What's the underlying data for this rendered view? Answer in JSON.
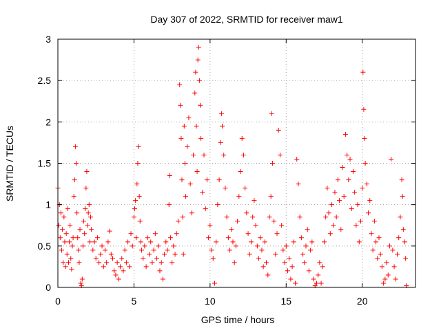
{
  "chart_data": {
    "type": "scatter",
    "title": "Day 307 of 2022, SRMTID for receiver maw1",
    "xlabel": "GPS time / hours",
    "ylabel": "SRMTID / TECUs",
    "xlim": [
      0,
      23.5
    ],
    "ylim": [
      0,
      3
    ],
    "xticks": [
      0,
      5,
      10,
      15,
      20
    ],
    "yticks": [
      0,
      0.5,
      1,
      1.5,
      2,
      2.5,
      3
    ],
    "ytick_labels": [
      "0",
      "0.5",
      "1",
      "1.5",
      "2",
      "2.5",
      "3"
    ],
    "grid": true,
    "marker": "+",
    "color": "#ff0000",
    "series": [
      {
        "name": "SRMTID",
        "points": [
          [
            0.0,
            1.2
          ],
          [
            0.05,
            0.75
          ],
          [
            0.1,
            1.0
          ],
          [
            0.15,
            0.6
          ],
          [
            0.2,
            0.9
          ],
          [
            0.25,
            0.45
          ],
          [
            0.3,
            0.7
          ],
          [
            0.35,
            0.3
          ],
          [
            0.4,
            0.85
          ],
          [
            0.45,
            0.55
          ],
          [
            0.5,
            0.25
          ],
          [
            0.55,
            0.65
          ],
          [
            0.6,
            0.4
          ],
          [
            0.65,
            0.95
          ],
          [
            0.7,
            0.3
          ],
          [
            0.75,
            0.55
          ],
          [
            0.8,
            0.75
          ],
          [
            0.85,
            0.35
          ],
          [
            0.9,
            0.22
          ],
          [
            0.95,
            0.5
          ],
          [
            1.0,
            0.6
          ],
          [
            1.05,
            1.1
          ],
          [
            1.1,
            1.3
          ],
          [
            1.15,
            1.7
          ],
          [
            1.2,
            1.5
          ],
          [
            1.25,
            0.9
          ],
          [
            1.3,
            0.6
          ],
          [
            1.35,
            0.45
          ],
          [
            1.4,
            0.3
          ],
          [
            1.45,
            0.7
          ],
          [
            1.5,
            0.05
          ],
          [
            1.55,
            0.02
          ],
          [
            1.6,
            0.1
          ],
          [
            1.65,
            0.5
          ],
          [
            1.7,
            0.8
          ],
          [
            1.75,
            0.65
          ],
          [
            1.8,
            0.95
          ],
          [
            1.85,
            1.2
          ],
          [
            1.9,
            1.4
          ],
          [
            1.95,
            0.75
          ],
          [
            2.0,
            0.9
          ],
          [
            2.05,
            1.0
          ],
          [
            2.1,
            0.55
          ],
          [
            2.15,
            0.85
          ],
          [
            2.2,
            0.7
          ],
          [
            2.3,
            0.45
          ],
          [
            2.4,
            0.55
          ],
          [
            2.5,
            0.35
          ],
          [
            2.6,
            0.6
          ],
          [
            2.7,
            0.3
          ],
          [
            2.8,
            0.4
          ],
          [
            2.9,
            0.5
          ],
          [
            3.0,
            0.25
          ],
          [
            3.1,
            0.45
          ],
          [
            3.2,
            0.3
          ],
          [
            3.3,
            0.55
          ],
          [
            3.4,
            0.68
          ],
          [
            3.5,
            0.4
          ],
          [
            3.6,
            0.35
          ],
          [
            3.7,
            0.2
          ],
          [
            3.8,
            0.15
          ],
          [
            3.9,
            0.3
          ],
          [
            4.0,
            0.1
          ],
          [
            4.1,
            0.25
          ],
          [
            4.2,
            0.35
          ],
          [
            4.3,
            0.2
          ],
          [
            4.4,
            0.45
          ],
          [
            4.5,
            0.3
          ],
          [
            4.6,
            0.55
          ],
          [
            4.7,
            0.25
          ],
          [
            4.8,
            0.65
          ],
          [
            4.9,
            0.5
          ],
          [
            5.0,
            0.85
          ],
          [
            5.05,
            0.95
          ],
          [
            5.1,
            1.05
          ],
          [
            5.15,
            0.6
          ],
          [
            5.2,
            1.25
          ],
          [
            5.25,
            1.5
          ],
          [
            5.3,
            1.7
          ],
          [
            5.35,
            1.1
          ],
          [
            5.4,
            0.8
          ],
          [
            5.45,
            0.55
          ],
          [
            5.5,
            0.45
          ],
          [
            5.6,
            0.35
          ],
          [
            5.7,
            0.5
          ],
          [
            5.8,
            0.25
          ],
          [
            5.9,
            0.6
          ],
          [
            6.0,
            0.4
          ],
          [
            6.1,
            0.55
          ],
          [
            6.2,
            0.3
          ],
          [
            6.3,
            0.45
          ],
          [
            6.4,
            0.65
          ],
          [
            6.5,
            0.35
          ],
          [
            6.6,
            0.5
          ],
          [
            6.7,
            0.2
          ],
          [
            6.8,
            0.3
          ],
          [
            6.9,
            0.1
          ],
          [
            7.0,
            0.4
          ],
          [
            7.1,
            0.55
          ],
          [
            7.2,
            0.45
          ],
          [
            7.3,
            1.0
          ],
          [
            7.35,
            1.35
          ],
          [
            7.4,
            0.6
          ],
          [
            7.5,
            0.3
          ],
          [
            7.6,
            0.5
          ],
          [
            7.7,
            0.4
          ],
          [
            7.8,
            0.65
          ],
          [
            7.9,
            0.8
          ],
          [
            8.0,
            2.45
          ],
          [
            8.05,
            2.2
          ],
          [
            8.1,
            1.8
          ],
          [
            8.15,
            1.3
          ],
          [
            8.2,
            0.85
          ],
          [
            8.25,
            0.4
          ],
          [
            8.3,
            1.95
          ],
          [
            8.35,
            1.5
          ],
          [
            8.4,
            1.1
          ],
          [
            8.5,
            1.7
          ],
          [
            8.6,
            2.05
          ],
          [
            8.7,
            1.25
          ],
          [
            8.8,
            0.9
          ],
          [
            8.9,
            1.6
          ],
          [
            9.0,
            2.35
          ],
          [
            9.05,
            2.6
          ],
          [
            9.1,
            1.95
          ],
          [
            9.15,
            1.4
          ],
          [
            9.2,
            2.75
          ],
          [
            9.25,
            2.9
          ],
          [
            9.3,
            2.5
          ],
          [
            9.35,
            2.2
          ],
          [
            9.4,
            1.8
          ],
          [
            9.5,
            1.15
          ],
          [
            9.6,
            1.6
          ],
          [
            9.7,
            0.95
          ],
          [
            9.8,
            1.3
          ],
          [
            9.9,
            0.6
          ],
          [
            10.0,
            0.75
          ],
          [
            10.1,
            0.45
          ],
          [
            10.2,
            0.35
          ],
          [
            10.3,
            0.05
          ],
          [
            10.4,
            0.55
          ],
          [
            10.5,
            1.0
          ],
          [
            10.6,
            1.3
          ],
          [
            10.7,
            1.75
          ],
          [
            10.75,
            2.1
          ],
          [
            10.8,
            1.95
          ],
          [
            10.9,
            1.6
          ],
          [
            11.0,
            1.2
          ],
          [
            11.1,
            0.85
          ],
          [
            11.2,
            0.6
          ],
          [
            11.3,
            0.45
          ],
          [
            11.4,
            0.7
          ],
          [
            11.5,
            0.55
          ],
          [
            11.6,
            0.3
          ],
          [
            11.7,
            0.5
          ],
          [
            11.8,
            0.8
          ],
          [
            11.9,
            1.1
          ],
          [
            12.0,
            1.4
          ],
          [
            12.1,
            1.8
          ],
          [
            12.2,
            1.6
          ],
          [
            12.3,
            1.2
          ],
          [
            12.4,
            0.9
          ],
          [
            12.5,
            0.65
          ],
          [
            12.6,
            0.4
          ],
          [
            12.7,
            0.55
          ],
          [
            12.8,
            0.85
          ],
          [
            12.9,
            1.05
          ],
          [
            13.0,
            0.75
          ],
          [
            13.1,
            0.5
          ],
          [
            13.2,
            0.35
          ],
          [
            13.3,
            0.6
          ],
          [
            13.4,
            0.45
          ],
          [
            13.5,
            0.25
          ],
          [
            13.6,
            0.55
          ],
          [
            13.7,
            0.3
          ],
          [
            13.8,
            0.15
          ],
          [
            13.9,
            0.85
          ],
          [
            14.0,
            1.1
          ],
          [
            14.05,
            2.1
          ],
          [
            14.1,
            1.5
          ],
          [
            14.2,
            0.8
          ],
          [
            14.3,
            0.4
          ],
          [
            14.4,
            0.65
          ],
          [
            14.5,
            1.9
          ],
          [
            14.6,
            1.6
          ],
          [
            14.7,
            0.75
          ],
          [
            14.8,
            0.45
          ],
          [
            14.9,
            0.3
          ],
          [
            15.0,
            0.5
          ],
          [
            15.1,
            0.2
          ],
          [
            15.2,
            0.35
          ],
          [
            15.3,
            0.1
          ],
          [
            15.4,
            0.25
          ],
          [
            15.5,
            0.55
          ],
          [
            15.6,
            0.05
          ],
          [
            15.7,
            1.55
          ],
          [
            15.8,
            1.25
          ],
          [
            15.9,
            0.85
          ],
          [
            16.0,
            0.6
          ],
          [
            16.1,
            0.4
          ],
          [
            16.2,
            0.3
          ],
          [
            16.3,
            0.5
          ],
          [
            16.4,
            0.7
          ],
          [
            16.5,
            0.2
          ],
          [
            16.6,
            0.45
          ],
          [
            16.7,
            0.55
          ],
          [
            16.8,
            0.1
          ],
          [
            16.9,
            0.02
          ],
          [
            17.0,
            0.05
          ],
          [
            17.1,
            0.15
          ],
          [
            17.2,
            0.3
          ],
          [
            17.3,
            0.05
          ],
          [
            17.4,
            0.25
          ],
          [
            17.5,
            0.55
          ],
          [
            17.6,
            0.85
          ],
          [
            17.7,
            1.2
          ],
          [
            17.8,
            0.9
          ],
          [
            17.9,
            0.65
          ],
          [
            18.0,
            1.0
          ],
          [
            18.1,
            0.75
          ],
          [
            18.2,
            1.15
          ],
          [
            18.3,
            0.85
          ],
          [
            18.4,
            1.3
          ],
          [
            18.5,
            1.05
          ],
          [
            18.6,
            0.7
          ],
          [
            18.7,
            1.45
          ],
          [
            18.8,
            1.1
          ],
          [
            18.9,
            1.85
          ],
          [
            19.0,
            1.6
          ],
          [
            19.1,
            1.3
          ],
          [
            19.2,
            1.55
          ],
          [
            19.3,
            0.95
          ],
          [
            19.4,
            1.4
          ],
          [
            19.5,
            1.15
          ],
          [
            19.6,
            0.75
          ],
          [
            19.7,
            1.0
          ],
          [
            19.8,
            0.55
          ],
          [
            19.9,
            0.8
          ],
          [
            20.0,
            1.2
          ],
          [
            20.05,
            2.6
          ],
          [
            20.1,
            2.15
          ],
          [
            20.15,
            1.8
          ],
          [
            20.2,
            1.5
          ],
          [
            20.3,
            1.25
          ],
          [
            20.4,
            0.9
          ],
          [
            20.5,
            1.05
          ],
          [
            20.6,
            0.65
          ],
          [
            20.7,
            0.45
          ],
          [
            20.8,
            0.8
          ],
          [
            20.9,
            0.55
          ],
          [
            21.0,
            0.35
          ],
          [
            21.1,
            0.6
          ],
          [
            21.2,
            0.4
          ],
          [
            21.3,
            0.25
          ],
          [
            21.4,
            0.05
          ],
          [
            21.5,
            0.1
          ],
          [
            21.6,
            0.3
          ],
          [
            21.7,
            0.15
          ],
          [
            21.8,
            0.5
          ],
          [
            21.9,
            1.55
          ],
          [
            22.0,
            0.45
          ],
          [
            22.1,
            0.25
          ],
          [
            22.2,
            0.1
          ],
          [
            22.3,
            0.4
          ],
          [
            22.4,
            0.6
          ],
          [
            22.5,
            0.85
          ],
          [
            22.6,
            1.3
          ],
          [
            22.65,
            1.1
          ],
          [
            22.7,
            0.7
          ],
          [
            22.8,
            0.55
          ],
          [
            22.85,
            0.35
          ],
          [
            22.9,
            0.02
          ]
        ]
      }
    ]
  }
}
